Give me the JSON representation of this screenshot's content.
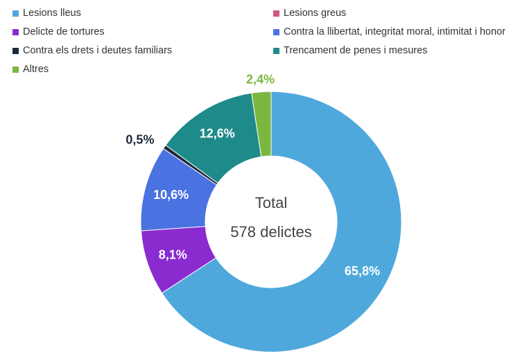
{
  "chart_data": {
    "type": "pie",
    "donut": true,
    "categories": [
      "Lesions lleus",
      "Lesions greus",
      "Delicte de tortures",
      "Contra la llibertat, integritat moral, intimitat i honor",
      "Contra els drets i deutes familiars",
      "Trencament de penes i mesures",
      "Altres"
    ],
    "values": [
      65.8,
      0,
      8.1,
      10.6,
      0.5,
      12.6,
      2.4
    ],
    "labels": [
      "65,8%",
      "",
      "8,1%",
      "10,6%",
      "0,5%",
      "12,6%",
      "2,4%"
    ],
    "colors": [
      "#4fa8dc",
      "#d05a7e",
      "#8a2bd0",
      "#4a72e0",
      "#1c2b3a",
      "#1f8a8a",
      "#7ab840"
    ],
    "label_colors": [
      "#ffffff",
      "#ffffff",
      "#ffffff",
      "#ffffff",
      "#1c2b3a",
      "#ffffff",
      "#7ab840"
    ],
    "center_title": "Total",
    "center_subtitle": "578 delictes",
    "legend_position": "top"
  }
}
